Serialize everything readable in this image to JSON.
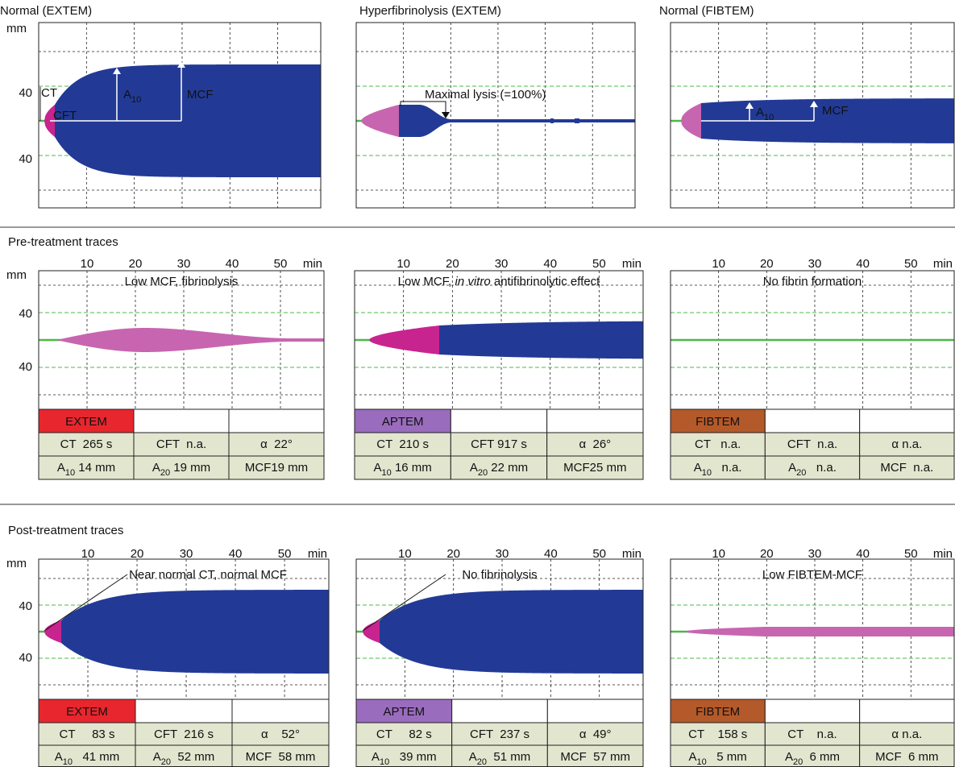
{
  "top_panels": [
    {
      "title": "Normal (EXTEM)",
      "unit": "mm",
      "y_labels": [
        "40",
        "40"
      ],
      "labels": [
        [
          {
            "text": "CT"
          }
        ],
        [
          {
            "text": "CFT"
          }
        ],
        [
          {
            "text": "A"
          },
          {
            "text": "10",
            "style": "sub"
          }
        ],
        [
          {
            "text": "MCF"
          }
        ]
      ]
    },
    {
      "title": "Hyperfibrinolysis (EXTEM)",
      "labels": [
        [
          {
            "text": "Maximal lysis (=100%)"
          }
        ]
      ]
    },
    {
      "title": "Normal (FIBTEM)",
      "labels": [
        [
          {
            "text": "A"
          },
          {
            "text": "10",
            "style": "sub"
          }
        ],
        [
          {
            "text": "MCF"
          }
        ]
      ]
    }
  ],
  "sections": [
    {
      "heading": "Pre-treatment traces",
      "panels": [
        {
          "x_ticks": [
            "10",
            "20",
            "30",
            "40",
            "50"
          ],
          "x_unit": "min",
          "unit": "mm",
          "y_labels": [
            "40",
            "40"
          ],
          "annotation": [
            {
              "text": "Low MCF, fibrinolysis"
            }
          ],
          "assay": "EXTEM",
          "assay_color": "#e8262d",
          "table": [
            [
              [
                {
                  "text": "CT  265 s"
                }
              ],
              [
                {
                  "text": "CFT  n.a."
                }
              ],
              [
                {
                  "text": "α  22°"
                }
              ]
            ],
            [
              [
                {
                  "text": "A"
                },
                {
                  "text": "10",
                  "style": "sub"
                },
                {
                  "text": " 14 mm"
                }
              ],
              [
                {
                  "text": "A"
                },
                {
                  "text": "20",
                  "style": "sub"
                },
                {
                  "text": " 19 mm"
                }
              ],
              [
                {
                  "text": "MCF19 mm"
                }
              ]
            ]
          ]
        },
        {
          "x_ticks": [
            "10",
            "20",
            "30",
            "40",
            "50"
          ],
          "x_unit": "min",
          "annotation": [
            {
              "text": "Low MCF, "
            },
            {
              "text": "in vitro",
              "style": "italic"
            },
            {
              "text": " antifibrinolytic effect"
            }
          ],
          "assay": "APTEM",
          "assay_color": "#9a6cbd",
          "table": [
            [
              [
                {
                  "text": "CT  210 s"
                }
              ],
              [
                {
                  "text": "CFT 917 s"
                }
              ],
              [
                {
                  "text": "α  26°"
                }
              ]
            ],
            [
              [
                {
                  "text": "A"
                },
                {
                  "text": "10",
                  "style": "sub"
                },
                {
                  "text": " 16 mm"
                }
              ],
              [
                {
                  "text": "A"
                },
                {
                  "text": "20",
                  "style": "sub"
                },
                {
                  "text": " 22 mm"
                }
              ],
              [
                {
                  "text": "MCF25 mm"
                }
              ]
            ]
          ]
        },
        {
          "x_ticks": [
            "10",
            "20",
            "30",
            "40",
            "50"
          ],
          "x_unit": "min",
          "annotation": [
            {
              "text": "No fibrin formation"
            }
          ],
          "assay": "FIBTEM",
          "assay_color": "#b4592a",
          "table": [
            [
              [
                {
                  "text": "CT   n.a."
                }
              ],
              [
                {
                  "text": "CFT  n.a."
                }
              ],
              [
                {
                  "text": "α n.a."
                }
              ]
            ],
            [
              [
                {
                  "text": "A"
                },
                {
                  "text": "10",
                  "style": "sub"
                },
                {
                  "text": "   n.a."
                }
              ],
              [
                {
                  "text": "A"
                },
                {
                  "text": "20",
                  "style": "sub"
                },
                {
                  "text": "   n.a."
                }
              ],
              [
                {
                  "text": "MCF  n.a."
                }
              ]
            ]
          ]
        }
      ]
    },
    {
      "heading": "Post-treatment traces",
      "panels": [
        {
          "x_ticks": [
            "10",
            "20",
            "30",
            "40",
            "50"
          ],
          "x_unit": "min",
          "unit": "mm",
          "y_labels": [
            "40",
            "40"
          ],
          "annotation": [
            {
              "text": "Near normal CT, normal MCF"
            }
          ],
          "assay": "EXTEM",
          "assay_color": "#e8262d",
          "table": [
            [
              [
                {
                  "text": "CT     83 s"
                }
              ],
              [
                {
                  "text": "CFT  216 s"
                }
              ],
              [
                {
                  "text": "α    52°"
                }
              ]
            ],
            [
              [
                {
                  "text": "A"
                },
                {
                  "text": "10",
                  "style": "sub"
                },
                {
                  "text": "   41 mm"
                }
              ],
              [
                {
                  "text": "A"
                },
                {
                  "text": "20",
                  "style": "sub"
                },
                {
                  "text": "  52 mm"
                }
              ],
              [
                {
                  "text": "MCF  58 mm"
                }
              ]
            ]
          ]
        },
        {
          "x_ticks": [
            "10",
            "20",
            "30",
            "40",
            "50"
          ],
          "x_unit": "min",
          "annotation": [
            {
              "text": "No fibrinolysis"
            }
          ],
          "assay": "APTEM",
          "assay_color": "#9a6cbd",
          "table": [
            [
              [
                {
                  "text": "CT     82 s"
                }
              ],
              [
                {
                  "text": "CFT  237 s"
                }
              ],
              [
                {
                  "text": "α  49°"
                }
              ]
            ],
            [
              [
                {
                  "text": "A"
                },
                {
                  "text": "10",
                  "style": "sub"
                },
                {
                  "text": "   39 mm"
                }
              ],
              [
                {
                  "text": "A"
                },
                {
                  "text": "20",
                  "style": "sub"
                },
                {
                  "text": "  51 mm"
                }
              ],
              [
                {
                  "text": "MCF  57 mm"
                }
              ]
            ]
          ]
        },
        {
          "x_ticks": [
            "10",
            "20",
            "30",
            "40",
            "50"
          ],
          "x_unit": "min",
          "annotation": [
            {
              "text": "Low FIBTEM-MCF"
            }
          ],
          "assay": "FIBTEM",
          "assay_color": "#b4592a",
          "table": [
            [
              [
                {
                  "text": "CT    158 s"
                }
              ],
              [
                {
                  "text": "CT    n.a."
                }
              ],
              [
                {
                  "text": "α n.a."
                }
              ]
            ],
            [
              [
                {
                  "text": "A"
                },
                {
                  "text": "10",
                  "style": "sub"
                },
                {
                  "text": "   5 mm"
                }
              ],
              [
                {
                  "text": "A"
                },
                {
                  "text": "20",
                  "style": "sub"
                },
                {
                  "text": "  6 mm"
                }
              ],
              [
                {
                  "text": "MCF  6 mm"
                }
              ]
            ]
          ]
        }
      ]
    }
  ]
}
